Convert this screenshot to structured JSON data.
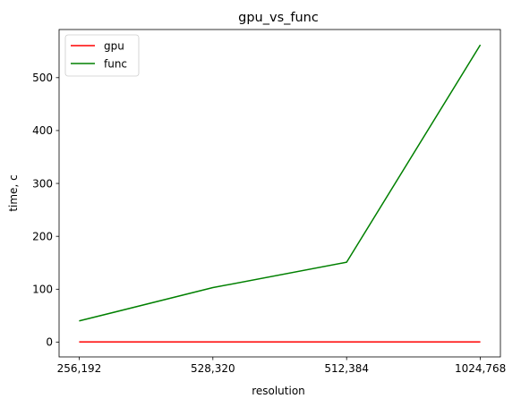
{
  "chart_data": {
    "type": "line",
    "title": "gpu_vs_func",
    "xlabel": "resolution",
    "ylabel": "time, c",
    "categories": [
      "256,192",
      "528,320",
      "512,384",
      "1024,768"
    ],
    "yticks": [
      0,
      100,
      200,
      300,
      400,
      500
    ],
    "ylim": [
      -28,
      591
    ],
    "grid": false,
    "legend_position": "top-left",
    "series": [
      {
        "name": "gpu",
        "color": "#ff0000",
        "values": [
          0.3,
          0.3,
          0.3,
          0.3
        ]
      },
      {
        "name": "func",
        "color": "#008000",
        "values": [
          40,
          103,
          151,
          562
        ]
      }
    ]
  }
}
